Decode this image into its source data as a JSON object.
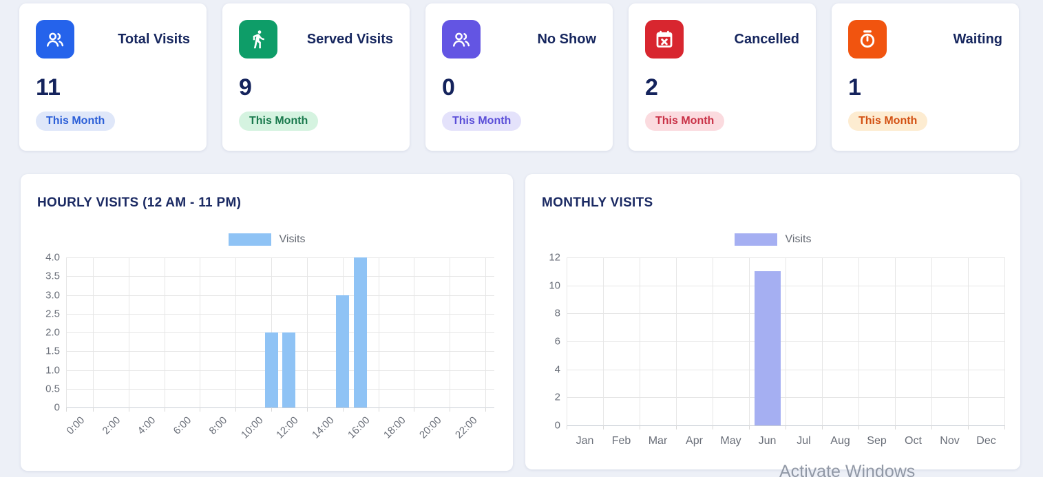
{
  "page": {
    "background": "#edf0f7",
    "watermark_text": "Activate Windows"
  },
  "stat_cards": [
    {
      "label": "Total Visits",
      "value": "11",
      "badge": "This Month",
      "icon": "users-icon",
      "icon_bg": "#2563eb",
      "badge_bg": "#dfe7f9",
      "badge_text_color": "#2d60d8"
    },
    {
      "label": "Served Visits",
      "value": "9",
      "badge": "This Month",
      "icon": "walking-person-icon",
      "icon_bg": "#0e9d68",
      "badge_bg": "#d5f3e0",
      "badge_text_color": "#1b7a4e"
    },
    {
      "label": "No Show",
      "value": "0",
      "badge": "This Month",
      "icon": "users-icon",
      "icon_bg": "#6355e3",
      "badge_bg": "#e4e2fb",
      "badge_text_color": "#5b4fd8"
    },
    {
      "label": "Cancelled",
      "value": "2",
      "badge": "This Month",
      "icon": "calendar-x-icon",
      "icon_bg": "#d8262f",
      "badge_bg": "#fbdbdf",
      "badge_text_color": "#c93247"
    },
    {
      "label": "Waiting",
      "value": "1",
      "badge": "This Month",
      "icon": "stopwatch-icon",
      "icon_bg": "#f1540f",
      "badge_bg": "#fdecd1",
      "badge_text_color": "#d35214"
    }
  ],
  "chart_data": [
    {
      "type": "bar",
      "title": "HOURLY VISITS (12 AM - 11 PM)",
      "legend_label": "Visits",
      "legend_position": "top-center",
      "bar_color": "#8fc3f5",
      "categories": [
        "0:00",
        "1:00",
        "2:00",
        "3:00",
        "4:00",
        "5:00",
        "6:00",
        "7:00",
        "8:00",
        "9:00",
        "10:00",
        "11:00",
        "12:00",
        "13:00",
        "14:00",
        "15:00",
        "16:00",
        "17:00",
        "18:00",
        "19:00",
        "20:00",
        "21:00",
        "22:00",
        "23:00"
      ],
      "values": [
        0,
        0,
        0,
        0,
        0,
        0,
        0,
        0,
        0,
        0,
        0,
        2,
        2,
        0,
        0,
        3,
        4,
        0,
        0,
        0,
        0,
        0,
        0,
        0
      ],
      "x_axis_labels_shown": [
        "0:00",
        "2:00",
        "4:00",
        "6:00",
        "8:00",
        "10:00",
        "12:00",
        "14:00",
        "16:00",
        "18:00",
        "20:00",
        "22:00"
      ],
      "y_ticks": [
        "4.0",
        "3.5",
        "3.0",
        "2.5",
        "2.0",
        "1.5",
        "1.0",
        "0.5",
        "0"
      ],
      "ylim": [
        0,
        4
      ],
      "grid": true
    },
    {
      "type": "bar",
      "title": "MONTHLY VISITS",
      "legend_label": "Visits",
      "legend_position": "top-center",
      "bar_color": "#a5aff2",
      "categories": [
        "Jan",
        "Feb",
        "Mar",
        "Apr",
        "May",
        "Jun",
        "Jul",
        "Aug",
        "Sep",
        "Oct",
        "Nov",
        "Dec"
      ],
      "values": [
        0,
        0,
        0,
        0,
        0,
        11,
        0,
        0,
        0,
        0,
        0,
        0
      ],
      "y_ticks": [
        "12",
        "10",
        "8",
        "6",
        "4",
        "2",
        "0"
      ],
      "ylim": [
        0,
        12
      ],
      "grid": true
    }
  ]
}
